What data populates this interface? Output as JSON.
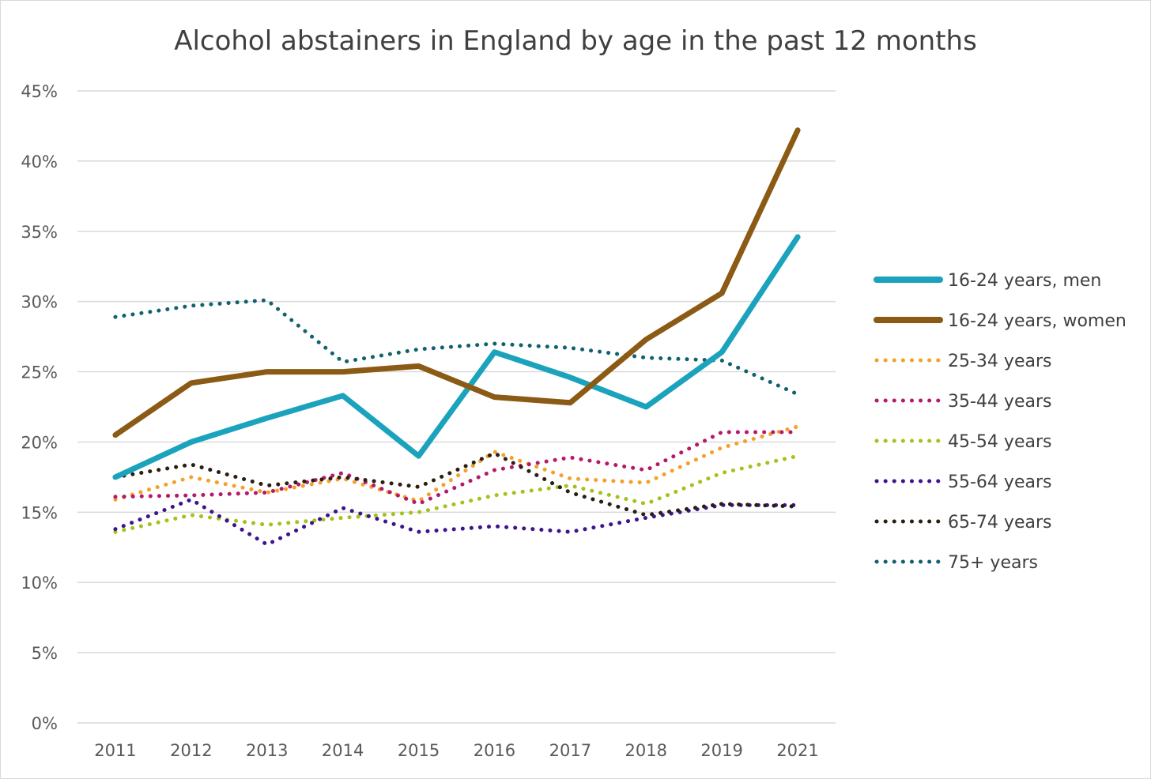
{
  "chart_data": {
    "type": "line",
    "title": "Alcohol abstainers in England by age in the past 12 months",
    "xlabel": "",
    "ylabel": "",
    "categories": [
      "2011",
      "2012",
      "2013",
      "2014",
      "2015",
      "2016",
      "2017",
      "2018",
      "2019",
      "2021"
    ],
    "yticks": [
      "0%",
      "5%",
      "10%",
      "15%",
      "20%",
      "25%",
      "30%",
      "35%",
      "40%",
      "45%"
    ],
    "ylim": [
      0,
      45
    ],
    "grid": true,
    "legend_position": "right",
    "series": [
      {
        "name": "16-24 years, men",
        "style": "solid",
        "color": "#1ba3bd",
        "values": [
          17.5,
          20.0,
          21.7,
          23.3,
          19.0,
          26.4,
          24.6,
          22.5,
          26.4,
          34.6
        ]
      },
      {
        "name": "16-24 years, women",
        "style": "solid",
        "color": "#8b5a14",
        "values": [
          20.5,
          24.2,
          25.0,
          25.0,
          25.4,
          23.2,
          22.8,
          27.3,
          30.6,
          42.2
        ]
      },
      {
        "name": "25-34 years",
        "style": "dotted",
        "color": "#f5a029",
        "values": [
          15.9,
          17.5,
          16.4,
          17.4,
          15.8,
          19.3,
          17.4,
          17.1,
          19.6,
          21.1
        ]
      },
      {
        "name": "35-44 years",
        "style": "dotted",
        "color": "#b5196b",
        "values": [
          16.1,
          16.2,
          16.4,
          17.8,
          15.6,
          18.0,
          18.9,
          18.0,
          20.7,
          20.7
        ]
      },
      {
        "name": "45-54 years",
        "style": "dotted",
        "color": "#a3c21c",
        "values": [
          13.6,
          14.8,
          14.1,
          14.6,
          15.0,
          16.2,
          16.9,
          15.6,
          17.8,
          19.0
        ]
      },
      {
        "name": "55-64 years",
        "style": "dotted",
        "color": "#3d1489",
        "values": [
          13.8,
          15.9,
          12.7,
          15.3,
          13.6,
          14.0,
          13.6,
          14.6,
          15.5,
          15.5
        ]
      },
      {
        "name": "65-74 years",
        "style": "dotted",
        "color": "#2b1e12",
        "values": [
          17.5,
          18.4,
          16.9,
          17.5,
          16.8,
          19.2,
          16.4,
          14.8,
          15.6,
          15.4
        ]
      },
      {
        "name": "75+ years",
        "style": "dotted",
        "color": "#11626f",
        "values": [
          28.9,
          29.7,
          30.1,
          25.7,
          26.6,
          27.0,
          26.7,
          26.0,
          25.8,
          23.4
        ]
      }
    ]
  }
}
